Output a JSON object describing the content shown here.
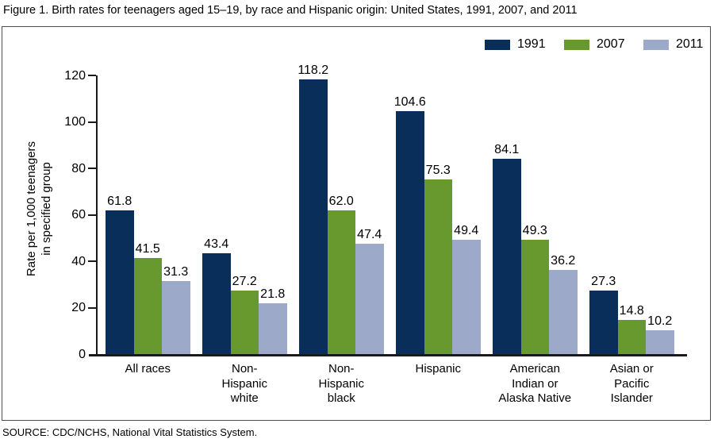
{
  "figure": {
    "title": "Figure 1. Birth rates for teenagers aged 15–19, by race and Hispanic origin: United States, 1991, 2007, and 2011",
    "source": "SOURCE: CDC/NCHS, National Vital Statistics System."
  },
  "chart_data": {
    "type": "bar",
    "title": "Figure 1. Birth rates for teenagers aged 15–19, by race and Hispanic origin: United States, 1991, 2007, and 2011",
    "ylabel": "Rate per 1,000 teenagers in specified group",
    "ylabel_lines": [
      "Rate per 1,000 teenagers",
      "in specified group"
    ],
    "ylim": [
      0,
      120
    ],
    "yticks": [
      0,
      20,
      40,
      60,
      80,
      100,
      120
    ],
    "grid": false,
    "legend_position": "top-right",
    "value_labels_decimals": 1,
    "categories": [
      "All races",
      "Non-Hispanic white",
      "Non-Hispanic black",
      "Hispanic",
      "American Indian or Alaska Native",
      "Asian or Pacific Islander"
    ],
    "category_lines": [
      [
        "All races"
      ],
      [
        "Non-",
        "Hispanic",
        "white"
      ],
      [
        "Non-",
        "Hispanic",
        "black"
      ],
      [
        "Hispanic"
      ],
      [
        "American",
        "Indian or",
        "Alaska Native"
      ],
      [
        "Asian or",
        "Pacific",
        "Islander"
      ]
    ],
    "series": [
      {
        "name": "1991",
        "color": "#082e59",
        "values": [
          61.8,
          43.4,
          118.2,
          104.6,
          84.1,
          27.3
        ]
      },
      {
        "name": "2007",
        "color": "#68992f",
        "values": [
          41.5,
          27.2,
          62.0,
          75.3,
          49.3,
          14.8
        ]
      },
      {
        "name": "2011",
        "color": "#9ca9c8",
        "values": [
          31.3,
          21.8,
          47.4,
          49.4,
          36.2,
          10.2
        ]
      }
    ],
    "axis_color": "#1a1a1a"
  }
}
